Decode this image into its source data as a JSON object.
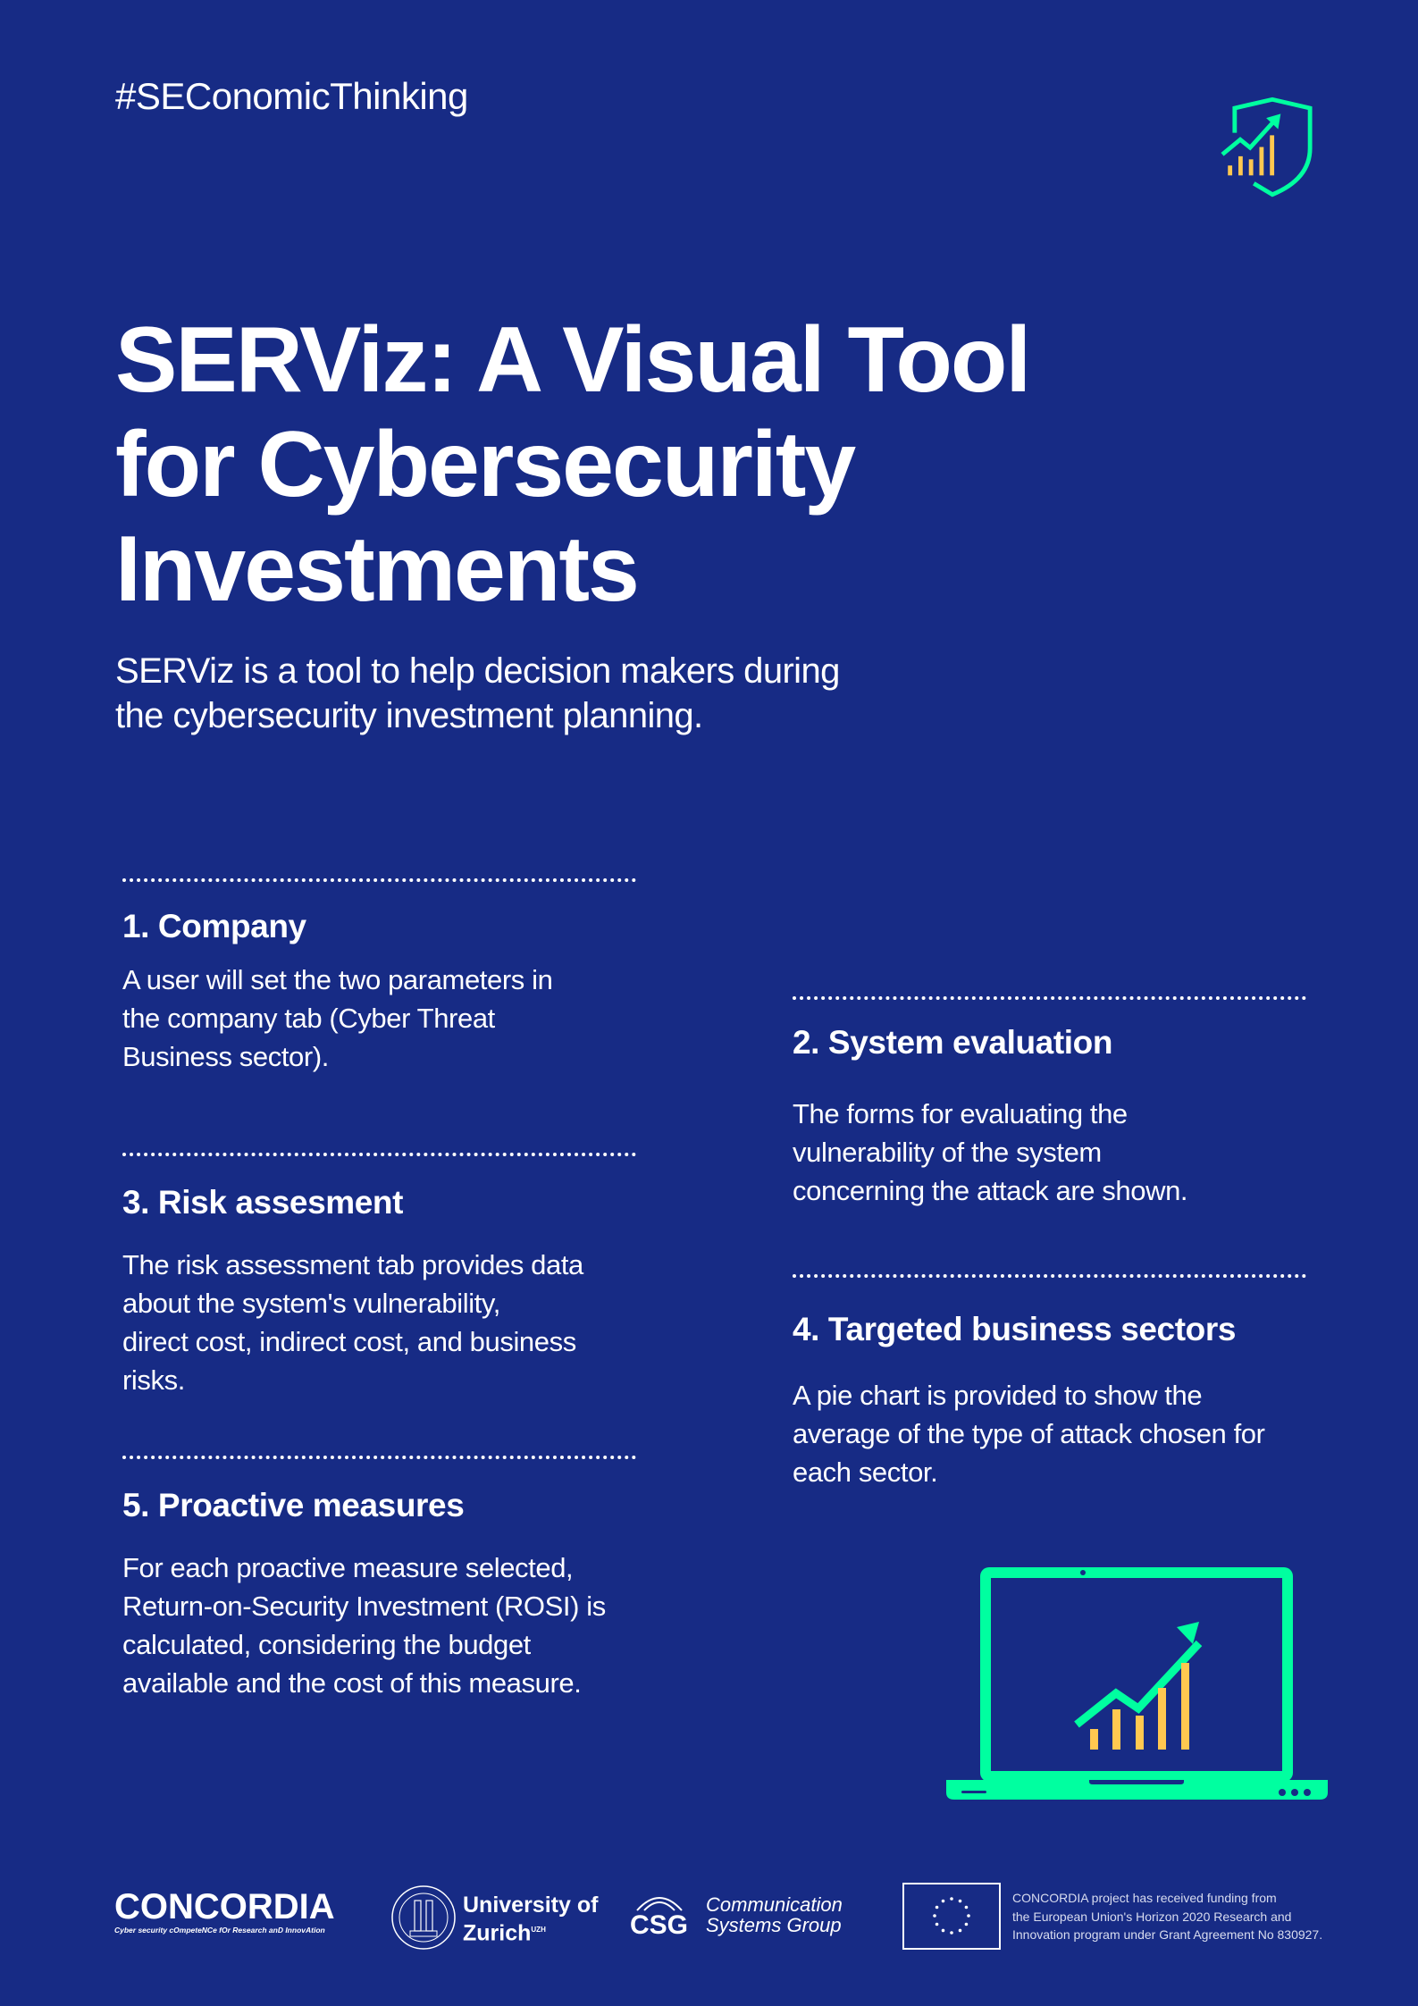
{
  "hashtag": "#SEConomicThinking",
  "title_lines": [
    "SERViz: A Visual Tool",
    "for Cybersecurity",
    "Investments"
  ],
  "subtitle_lines": [
    "SERViz is a tool to help decision makers during",
    "the cybersecurity investment planning."
  ],
  "sections": [
    {
      "heading": "1. Company",
      "lines": [
        "A user will set the two parameters in",
        "the company tab (Cyber Threat",
        "Business sector)."
      ]
    },
    {
      "heading": "2. System evaluation",
      "lines": [
        "The forms for evaluating the",
        "vulnerability of the system",
        "concerning the attack are shown."
      ]
    },
    {
      "heading": "3. Risk assesment",
      "lines": [
        "The risk assessment tab provides data",
        "about the system's vulnerability,",
        "direct cost, indirect cost, and business",
        "risks."
      ]
    },
    {
      "heading": "4. Targeted business sectors",
      "lines": [
        "A pie chart is provided to show the",
        "average of the type of attack chosen for",
        "each sector."
      ]
    },
    {
      "heading": "5. Proactive measures",
      "lines": [
        "For each proactive measure selected,",
        "Return-on-Security Investment (ROSI) is",
        "calculated, considering the budget",
        "available and the cost of this measure."
      ]
    }
  ],
  "footer": {
    "concordia": {
      "name": "CONCORDIA",
      "tagline": "Cyber security cOmpeteNCe fOr Research anD InnovAtion"
    },
    "uzh": {
      "line1": "University of",
      "line2": "Zurich",
      "sup": "UZH"
    },
    "csg": {
      "abbr": "CSG",
      "line1": "Communication",
      "line2": "Systems Group"
    },
    "funding_lines": [
      "CONCORDIA project has received funding from",
      "the European Union's Horizon 2020 Research and",
      "Innovation program under Grant Agreement No 830927."
    ]
  },
  "colors": {
    "background": "#172b85",
    "accent_green": "#00ffa0",
    "accent_yellow": "#ffc850"
  },
  "icons": [
    "shield-chart-icon",
    "laptop-chart-icon",
    "eu-flag-icon"
  ]
}
